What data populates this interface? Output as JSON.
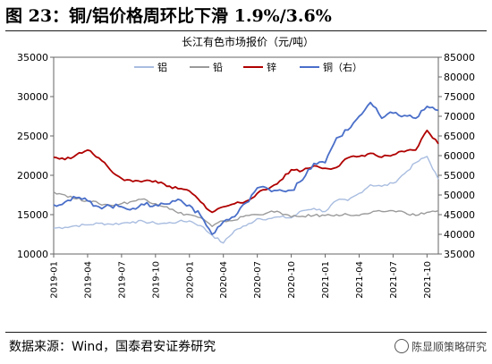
{
  "figure_title": "图 23：铜/铝价格周环比下滑 1.9%/3.6%",
  "source": "数据来源：Wind，国泰君安证券研究",
  "watermark": "陈显顺策略研究",
  "colors": {
    "aluminum": "#a9bde0",
    "lead": "#9a9a9a",
    "zinc": "#b00000",
    "copper": "#4a6fc9"
  },
  "chart_data": {
    "type": "line",
    "title": "长江有色市场报价（元/吨）",
    "legend_position": "top-center",
    "grid": false,
    "x_tick_labels": [
      "2019-01",
      "2019-04",
      "2019-07",
      "2019-10",
      "2020-01",
      "2020-04",
      "2020-07",
      "2020-10",
      "2021-01",
      "2021-04",
      "2021-07",
      "2021-10"
    ],
    "x_range": [
      "2019-01",
      "2021-11"
    ],
    "y_left": {
      "ticks": [
        10000,
        15000,
        20000,
        25000,
        30000,
        35000
      ],
      "range": [
        10000,
        35000
      ]
    },
    "y_right": {
      "ticks": [
        35000,
        40000,
        45000,
        50000,
        55000,
        60000,
        65000,
        70000,
        75000,
        80000,
        85000
      ],
      "range": [
        35000,
        85000
      ]
    },
    "series": [
      {
        "name": "铝",
        "axis": "left",
        "color": "#a9bde0",
        "x": [
          "2019-01",
          "2019-02",
          "2019-03",
          "2019-04",
          "2019-05",
          "2019-06",
          "2019-07",
          "2019-08",
          "2019-09",
          "2019-10",
          "2019-11",
          "2019-12",
          "2020-01",
          "2020-02",
          "2020-03",
          "2020-04",
          "2020-05",
          "2020-06",
          "2020-07",
          "2020-08",
          "2020-09",
          "2020-10",
          "2020-11",
          "2020-12",
          "2021-01",
          "2021-02",
          "2021-03",
          "2021-04",
          "2021-05",
          "2021-06",
          "2021-07",
          "2021-08",
          "2021-09",
          "2021-10",
          "2021-11"
        ],
        "values": [
          13300,
          13400,
          13600,
          13700,
          13900,
          13800,
          13900,
          14100,
          14100,
          13900,
          13900,
          14100,
          14200,
          13600,
          12400,
          11400,
          13000,
          13600,
          14500,
          14500,
          14700,
          14600,
          15500,
          15800,
          15400,
          16800,
          16800,
          17700,
          18800,
          18600,
          19000,
          20200,
          21600,
          22400,
          19500
        ]
      },
      {
        "name": "铅",
        "axis": "left",
        "color": "#9a9a9a",
        "x": [
          "2019-01",
          "2019-02",
          "2019-03",
          "2019-04",
          "2019-05",
          "2019-06",
          "2019-07",
          "2019-08",
          "2019-09",
          "2019-10",
          "2019-11",
          "2019-12",
          "2020-01",
          "2020-02",
          "2020-03",
          "2020-04",
          "2020-05",
          "2020-06",
          "2020-07",
          "2020-08",
          "2020-09",
          "2020-10",
          "2020-11",
          "2020-12",
          "2021-01",
          "2021-02",
          "2021-03",
          "2021-04",
          "2021-05",
          "2021-06",
          "2021-07",
          "2021-08",
          "2021-09",
          "2021-10",
          "2021-11"
        ],
        "values": [
          17900,
          17500,
          17000,
          16800,
          16400,
          16200,
          16400,
          16700,
          17000,
          16400,
          16000,
          15200,
          15000,
          14600,
          13500,
          14200,
          14300,
          14900,
          15000,
          15300,
          15300,
          14700,
          14800,
          14900,
          14900,
          15000,
          15000,
          14900,
          15200,
          15400,
          15500,
          15300,
          14900,
          15300,
          15500
        ]
      },
      {
        "name": "锌",
        "axis": "left",
        "color": "#b00000",
        "x": [
          "2019-01",
          "2019-02",
          "2019-03",
          "2019-04",
          "2019-05",
          "2019-06",
          "2019-07",
          "2019-08",
          "2019-09",
          "2019-10",
          "2019-11",
          "2019-12",
          "2020-01",
          "2020-02",
          "2020-03",
          "2020-04",
          "2020-05",
          "2020-06",
          "2020-07",
          "2020-08",
          "2020-09",
          "2020-10",
          "2020-11",
          "2020-12",
          "2021-01",
          "2021-02",
          "2021-03",
          "2021-04",
          "2021-05",
          "2021-06",
          "2021-07",
          "2021-08",
          "2021-09",
          "2021-10",
          "2021-11"
        ],
        "values": [
          22300,
          22000,
          22600,
          23200,
          22200,
          20700,
          19600,
          19200,
          19300,
          19300,
          18600,
          18300,
          18000,
          16600,
          15300,
          16000,
          16400,
          16700,
          17700,
          18300,
          19300,
          20700,
          20600,
          21200,
          20900,
          21000,
          22200,
          22400,
          22800,
          22300,
          22600,
          23000,
          23200,
          25700,
          24000
        ]
      },
      {
        "name": "铜（右）",
        "axis": "right",
        "color": "#4a6fc9",
        "x": [
          "2019-01",
          "2019-02",
          "2019-03",
          "2019-04",
          "2019-05",
          "2019-06",
          "2019-07",
          "2019-08",
          "2019-09",
          "2019-10",
          "2019-11",
          "2019-12",
          "2020-01",
          "2020-02",
          "2020-03",
          "2020-04",
          "2020-05",
          "2020-06",
          "2020-07",
          "2020-08",
          "2020-09",
          "2020-10",
          "2020-11",
          "2020-12",
          "2021-01",
          "2021-02",
          "2021-03",
          "2021-04",
          "2021-05",
          "2021-06",
          "2021-07",
          "2021-08",
          "2021-09",
          "2021-10",
          "2021-11"
        ],
        "values": [
          47500,
          48200,
          49300,
          48500,
          47000,
          47200,
          47000,
          46600,
          47500,
          47500,
          47700,
          48900,
          47400,
          44700,
          40000,
          43200,
          44500,
          48000,
          51800,
          51500,
          51300,
          51200,
          53800,
          58000,
          58200,
          64500,
          66500,
          70000,
          73500,
          69500,
          70800,
          70200,
          69500,
          72500,
          71500
        ]
      }
    ]
  }
}
